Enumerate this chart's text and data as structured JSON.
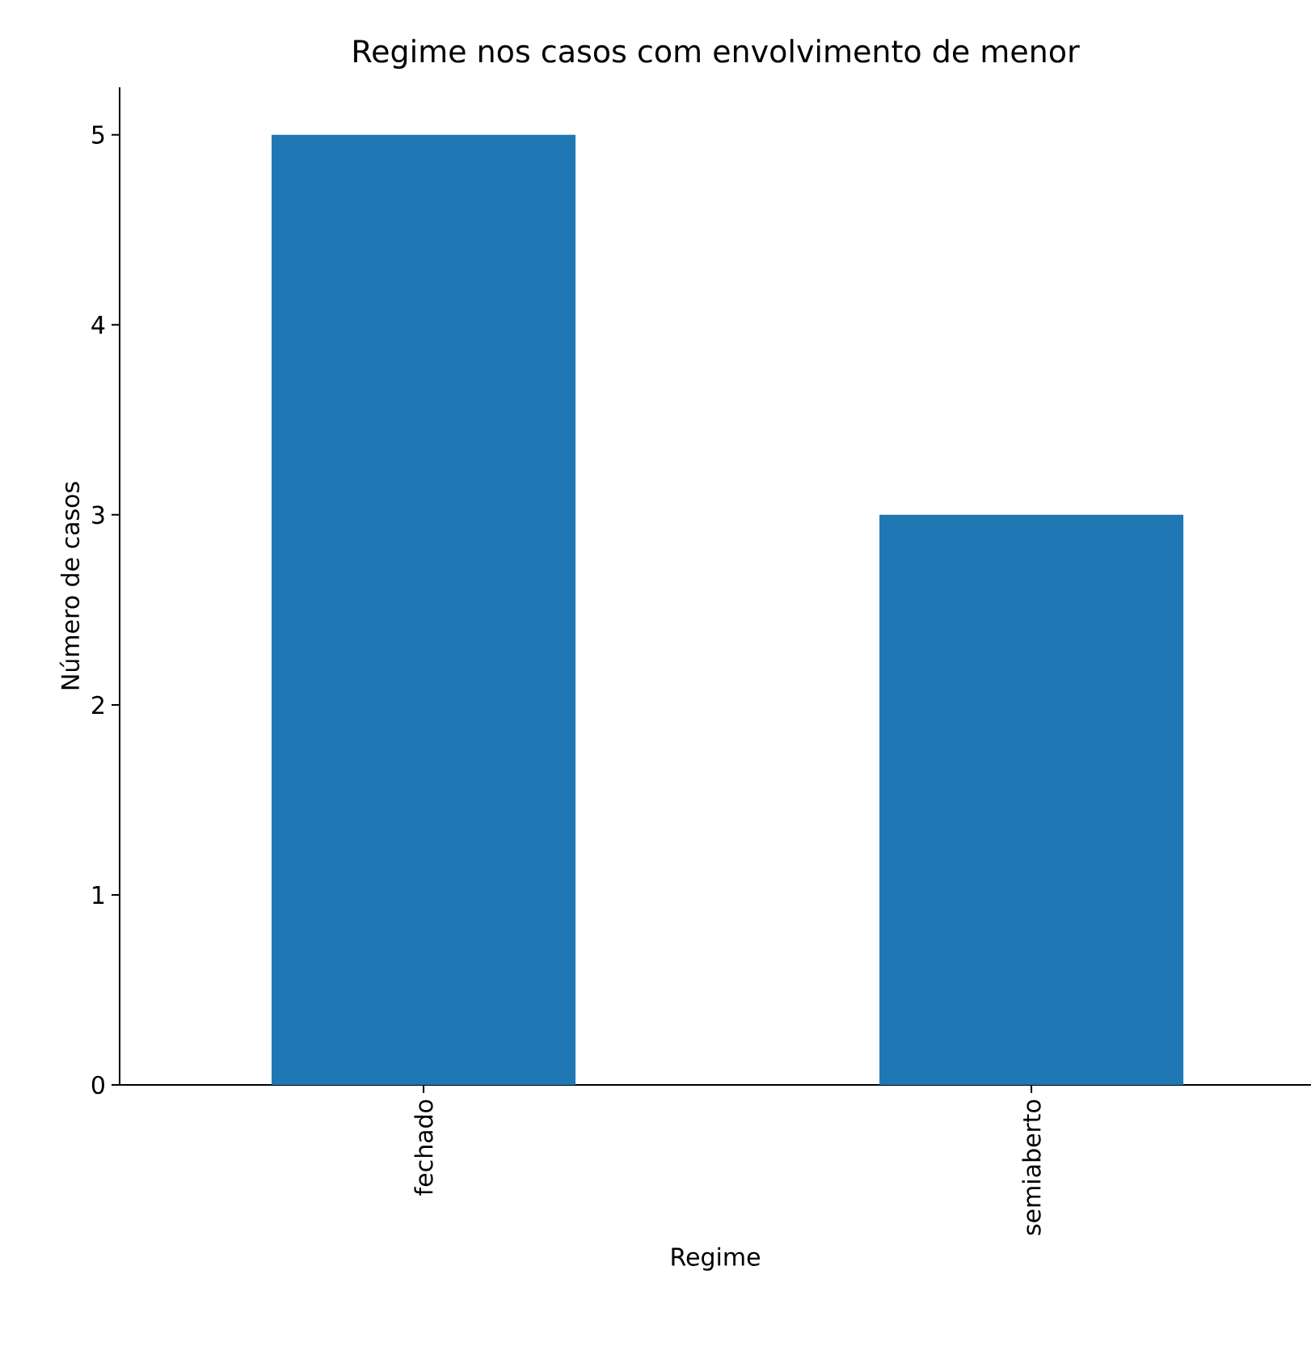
{
  "chart_data": {
    "type": "bar",
    "title": "Regime nos casos com envolvimento de menor",
    "xlabel": "Regime",
    "ylabel": "Número de casos",
    "categories": [
      "fechado",
      "semiaberto"
    ],
    "values": [
      5,
      3
    ],
    "color": "#1f77b4",
    "ylim": [
      0,
      5.25
    ],
    "yticks": [
      0,
      1,
      2,
      3,
      4,
      5
    ],
    "grid": false
  }
}
